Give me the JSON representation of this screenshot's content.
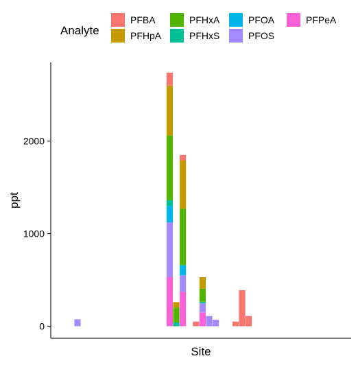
{
  "chart_data": {
    "type": "bar",
    "stacked": true,
    "xlabel": "Site",
    "ylabel": "ppt",
    "ylim": [
      -130,
      2850
    ],
    "yticks": [
      0,
      1000,
      2000
    ],
    "grid": false,
    "legend": {
      "title": "Analyte",
      "placement": "top",
      "entries": [
        {
          "name": "PFBA",
          "color": "#F8766D"
        },
        {
          "name": "PFHpA",
          "color": "#C49A00"
        },
        {
          "name": "PFHxA",
          "color": "#53B400"
        },
        {
          "name": "PFHxS",
          "color": "#00C094"
        },
        {
          "name": "PFOA",
          "color": "#00B6EB"
        },
        {
          "name": "PFOS",
          "color": "#A58AFF"
        },
        {
          "name": "PFPeA",
          "color": "#FB61D7"
        }
      ]
    },
    "bars": [
      {
        "slot": 0,
        "segments": [
          {
            "analyte": "PFOS",
            "value": 75
          }
        ]
      },
      {
        "slot": 14,
        "segments": [
          {
            "analyte": "PFPeA",
            "value": 530
          },
          {
            "analyte": "PFOS",
            "value": 590
          },
          {
            "analyte": "PFOA",
            "value": 180
          },
          {
            "analyte": "PFHxS",
            "value": 60
          },
          {
            "analyte": "PFHxA",
            "value": 700
          },
          {
            "analyte": "PFHpA",
            "value": 540
          },
          {
            "analyte": "PFBA",
            "value": 140
          }
        ]
      },
      {
        "slot": 15,
        "segments": [
          {
            "analyte": "PFHxS",
            "value": 40
          },
          {
            "analyte": "PFHxA",
            "value": 160
          },
          {
            "analyte": "PFHpA",
            "value": 60
          }
        ]
      },
      {
        "slot": 16,
        "segments": [
          {
            "analyte": "PFPeA",
            "value": 370
          },
          {
            "analyte": "PFOS",
            "value": 180
          },
          {
            "analyte": "PFOA",
            "value": 110
          },
          {
            "analyte": "PFHxA",
            "value": 610
          },
          {
            "analyte": "PFHpA",
            "value": 520
          },
          {
            "analyte": "PFBA",
            "value": 60
          }
        ]
      },
      {
        "slot": 18,
        "segments": [
          {
            "analyte": "PFBA",
            "value": 50
          }
        ]
      },
      {
        "slot": 19,
        "segments": [
          {
            "analyte": "PFPeA",
            "value": 150
          },
          {
            "analyte": "PFOS",
            "value": 100
          },
          {
            "analyte": "PFHxS",
            "value": 15
          },
          {
            "analyte": "PFHxA",
            "value": 140
          },
          {
            "analyte": "PFHpA",
            "value": 125
          }
        ]
      },
      {
        "slot": 20,
        "segments": [
          {
            "analyte": "PFOS",
            "value": 110
          }
        ]
      },
      {
        "slot": 21,
        "segments": [
          {
            "analyte": "PFOS",
            "value": 70
          }
        ]
      },
      {
        "slot": 24,
        "segments": [
          {
            "analyte": "PFBA",
            "value": 50
          }
        ]
      },
      {
        "slot": 25,
        "segments": [
          {
            "analyte": "PFBA",
            "value": 390
          }
        ]
      },
      {
        "slot": 26,
        "segments": [
          {
            "analyte": "PFBA",
            "value": 110
          }
        ]
      }
    ]
  }
}
